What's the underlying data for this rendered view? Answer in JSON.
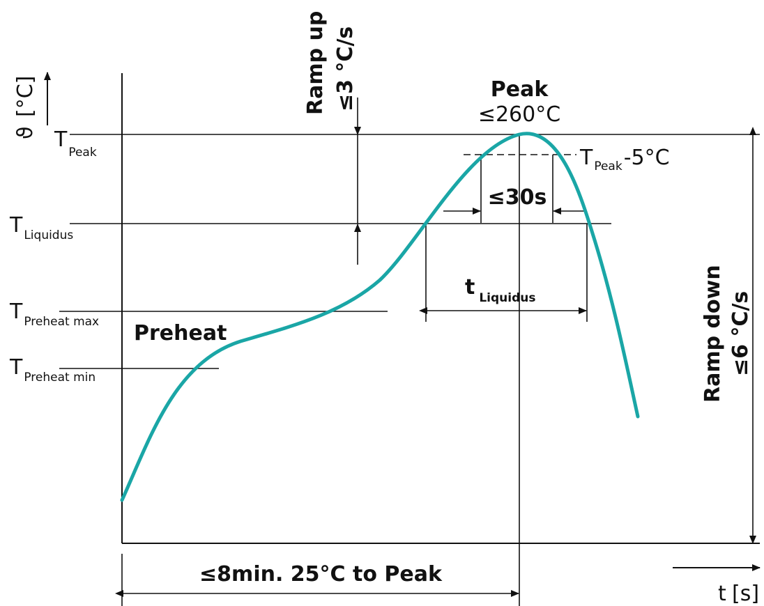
{
  "colors": {
    "curve": "#1aa6a6",
    "ink": "#111111",
    "background": "#ffffff"
  },
  "y_axis": {
    "symbol": "ϑ",
    "unit": "[°C]"
  },
  "x_axis": {
    "symbol": "t",
    "unit": "[s]"
  },
  "levels": {
    "peak": {
      "main": "T",
      "sub": "Peak"
    },
    "liquidus": {
      "main": "T",
      "sub": "Liquidus"
    },
    "preheat_max": {
      "main": "T",
      "sub": "Preheat max"
    },
    "preheat_min": {
      "main": "T",
      "sub": "Preheat min"
    }
  },
  "annotations": {
    "ramp_up_line1": "Ramp up",
    "ramp_up_line2": "≤3 °C/s",
    "peak_title": "Peak",
    "peak_value": "≤260°C",
    "peak_minus_main": "T",
    "peak_minus_sub": "Peak",
    "peak_minus_suffix": "-5°C",
    "window_30s": "≤30s",
    "t_liquidus_main": "t",
    "t_liquidus_sub": "Liquidus",
    "preheat": "Preheat",
    "ramp_down_line1": "Ramp down",
    "ramp_down_line2": "≤6 °C/s",
    "total_time": "≤8min. 25°C to Peak"
  }
}
